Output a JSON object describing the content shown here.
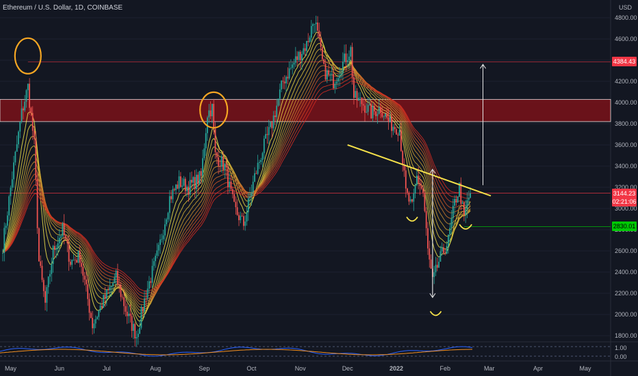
{
  "header": {
    "title": "Ethereum / U.S. Dollar, 1D, COINBASE"
  },
  "chart_data": {
    "type": "candlestick",
    "symbol": "Ethereum / U.S. Dollar",
    "interval": "1D",
    "exchange": "COINBASE",
    "currency": "USD",
    "y_ticks": [
      1800,
      2000,
      2200,
      2400,
      2600,
      2800,
      3000,
      3200,
      3400,
      3600,
      3800,
      4000,
      4200,
      4400,
      4600,
      4800
    ],
    "y_ticks_text": [
      "1800.00",
      "2000.00",
      "2200.00",
      "2400.00",
      "2600.00",
      "2800.00",
      "3000.00",
      "3200.00",
      "3400.00",
      "3600.00",
      "3800.00",
      "4000.00",
      "4200.00",
      "4400.00",
      "4600.00",
      "4800.00"
    ],
    "ylim": [
      1700,
      4950
    ],
    "x_ticks": [
      "May",
      "Jun",
      "Jul",
      "Aug",
      "Sep",
      "Oct",
      "Nov",
      "Dec",
      "2022",
      "Feb",
      "Mar",
      "Apr",
      "May"
    ],
    "price_path": [
      {
        "date": "2021-04-26",
        "price": 2650
      },
      {
        "date": "2021-05-02",
        "price": 3300
      },
      {
        "date": "2021-05-08",
        "price": 3900
      },
      {
        "date": "2021-05-12",
        "price": 4150
      },
      {
        "date": "2021-05-16",
        "price": 3600
      },
      {
        "date": "2021-05-19",
        "price": 2500
      },
      {
        "date": "2021-05-23",
        "price": 2100
      },
      {
        "date": "2021-05-28",
        "price": 2600
      },
      {
        "date": "2021-06-03",
        "price": 2800
      },
      {
        "date": "2021-06-08",
        "price": 2500
      },
      {
        "date": "2021-06-14",
        "price": 2550
      },
      {
        "date": "2021-06-22",
        "price": 1900
      },
      {
        "date": "2021-06-28",
        "price": 2100
      },
      {
        "date": "2021-07-07",
        "price": 2350
      },
      {
        "date": "2021-07-14",
        "price": 2000
      },
      {
        "date": "2021-07-20",
        "price": 1800
      },
      {
        "date": "2021-07-26",
        "price": 2200
      },
      {
        "date": "2021-08-03",
        "price": 2600
      },
      {
        "date": "2021-08-10",
        "price": 3100
      },
      {
        "date": "2021-08-16",
        "price": 3250
      },
      {
        "date": "2021-08-22",
        "price": 3200
      },
      {
        "date": "2021-08-30",
        "price": 3300
      },
      {
        "date": "2021-09-03",
        "price": 3900
      },
      {
        "date": "2021-09-06",
        "price": 3950
      },
      {
        "date": "2021-09-08",
        "price": 3500
      },
      {
        "date": "2021-09-14",
        "price": 3400
      },
      {
        "date": "2021-09-20",
        "price": 3000
      },
      {
        "date": "2021-09-26",
        "price": 2850
      },
      {
        "date": "2021-10-03",
        "price": 3300
      },
      {
        "date": "2021-10-08",
        "price": 3550
      },
      {
        "date": "2021-10-14",
        "price": 3800
      },
      {
        "date": "2021-10-21",
        "price": 4200
      },
      {
        "date": "2021-10-29",
        "price": 4400
      },
      {
        "date": "2021-11-05",
        "price": 4550
      },
      {
        "date": "2021-11-10",
        "price": 4800
      },
      {
        "date": "2021-11-16",
        "price": 4300
      },
      {
        "date": "2021-11-22",
        "price": 4200
      },
      {
        "date": "2021-11-29",
        "price": 4400
      },
      {
        "date": "2021-12-03",
        "price": 4500
      },
      {
        "date": "2021-12-05",
        "price": 4050
      },
      {
        "date": "2021-12-10",
        "price": 4000
      },
      {
        "date": "2021-12-16",
        "price": 3900
      },
      {
        "date": "2021-12-22",
        "price": 3950
      },
      {
        "date": "2021-12-28",
        "price": 3800
      },
      {
        "date": "2022-01-03",
        "price": 3750
      },
      {
        "date": "2022-01-07",
        "price": 3150
      },
      {
        "date": "2022-01-11",
        "price": 3000
      },
      {
        "date": "2022-01-14",
        "price": 3300
      },
      {
        "date": "2022-01-18",
        "price": 3150
      },
      {
        "date": "2022-01-21",
        "price": 2600
      },
      {
        "date": "2022-01-24",
        "price": 2300
      },
      {
        "date": "2022-01-28",
        "price": 2500
      },
      {
        "date": "2022-02-03",
        "price": 2700
      },
      {
        "date": "2022-02-07",
        "price": 3050
      },
      {
        "date": "2022-02-10",
        "price": 3200
      },
      {
        "date": "2022-02-13",
        "price": 2900
      },
      {
        "date": "2022-02-15",
        "price": 3050
      },
      {
        "date": "2022-02-17",
        "price": 3144
      }
    ],
    "horizontal_levels": [
      {
        "price": 4384.43,
        "label": "4384.43",
        "color": "#f23645"
      },
      {
        "price": 3144.23,
        "label": "3144.23",
        "color": "#f23645"
      },
      {
        "price": 2830.01,
        "label": "2830.01",
        "color": "#00c805"
      }
    ],
    "resistance_zone": {
      "from": 3820,
      "to": 4030,
      "color": "#7a1219"
    },
    "trendline": {
      "from": {
        "date": "2021-12-01",
        "price": 3600
      },
      "to": {
        "date": "2022-03-02",
        "price": 3120
      },
      "color": "#f5e14a"
    },
    "countdown": "02:21:06",
    "oscillator": {
      "ticks": [
        "0.00",
        "1.00"
      ]
    }
  },
  "colors": {
    "background": "#131722",
    "up": "#26a69a",
    "down": "#ef5350",
    "grid": "#1e2230"
  }
}
